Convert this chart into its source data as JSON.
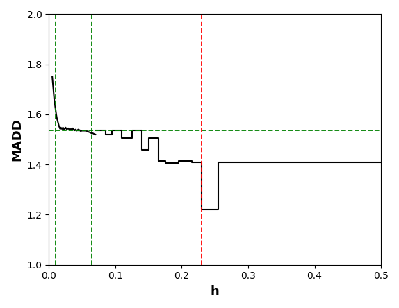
{
  "title": "",
  "xlabel": "h",
  "ylabel": "MADD",
  "xlim": [
    0,
    0.5
  ],
  "ylim": [
    1.0,
    2.0
  ],
  "xticks": [
    0.0,
    0.1,
    0.2,
    0.3,
    0.4,
    0.5
  ],
  "yticks": [
    1.0,
    1.2,
    1.4,
    1.6,
    1.8,
    2.0
  ],
  "vline_green1": 0.01,
  "vline_green2": 0.065,
  "vline_red": 0.23,
  "hline_green": 1.535,
  "line_color": "black",
  "vline_green_color": "green",
  "vline_red_color": "red",
  "hline_green_color": "green",
  "background_color": "white",
  "curve_x": [
    0.005,
    0.006,
    0.007,
    0.008,
    0.009,
    0.01,
    0.011,
    0.012,
    0.013,
    0.014,
    0.015,
    0.016,
    0.017,
    0.018,
    0.019,
    0.02,
    0.021,
    0.022,
    0.023,
    0.024,
    0.025,
    0.026,
    0.027,
    0.028,
    0.029,
    0.03,
    0.031,
    0.032,
    0.033,
    0.034,
    0.035,
    0.036,
    0.037,
    0.038,
    0.039,
    0.04,
    0.041,
    0.042,
    0.043,
    0.044,
    0.045,
    0.046,
    0.047,
    0.048,
    0.049,
    0.05,
    0.052,
    0.054,
    0.056,
    0.058,
    0.06,
    0.062,
    0.064,
    0.066,
    0.068,
    0.07
  ],
  "curve_y": [
    1.75,
    1.72,
    1.69,
    1.66,
    1.64,
    1.62,
    1.6,
    1.585,
    1.575,
    1.565,
    1.555,
    1.548,
    1.542,
    1.548,
    1.543,
    1.542,
    1.548,
    1.545,
    1.54,
    1.545,
    1.548,
    1.544,
    1.54,
    1.543,
    1.545,
    1.542,
    1.538,
    1.54,
    1.542,
    1.538,
    1.542,
    1.545,
    1.54,
    1.538,
    1.536,
    1.54,
    1.538,
    1.535,
    1.537,
    1.54,
    1.535,
    1.538,
    1.535,
    1.533,
    1.535,
    1.535,
    1.535,
    1.535,
    1.535,
    1.532,
    1.53,
    1.528,
    1.525,
    1.525,
    1.522,
    1.52
  ],
  "steps_x": [
    0.07,
    0.085,
    0.085,
    0.095,
    0.095,
    0.11,
    0.11,
    0.125,
    0.125,
    0.14,
    0.14,
    0.15,
    0.15,
    0.165,
    0.165,
    0.175,
    0.175,
    0.195,
    0.195,
    0.215,
    0.215,
    0.23,
    0.23,
    0.255,
    0.255,
    0.34,
    0.34,
    0.5
  ],
  "steps_y": [
    1.535,
    1.535,
    1.52,
    1.52,
    1.535,
    1.535,
    1.505,
    1.505,
    1.535,
    1.535,
    1.46,
    1.46,
    1.505,
    1.505,
    1.415,
    1.415,
    1.405,
    1.405,
    1.415,
    1.415,
    1.41,
    1.41,
    1.22,
    1.22,
    1.41,
    1.41,
    1.41,
    1.41
  ]
}
